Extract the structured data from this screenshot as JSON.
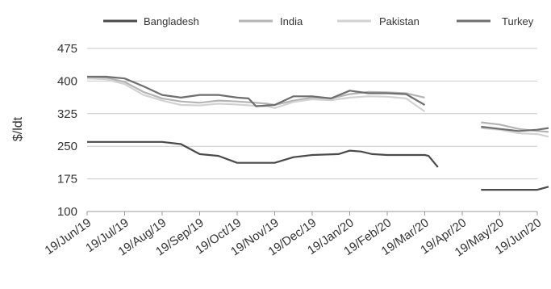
{
  "chart_data": {
    "type": "line",
    "title": "",
    "xlabel": "",
    "ylabel": "$/ldt",
    "ylim": [
      100,
      475
    ],
    "yticks": [
      100,
      175,
      250,
      325,
      400,
      475
    ],
    "grid": true,
    "legend_position": "top",
    "x_categories": [
      "19/Jun/19",
      "19/Jul/19",
      "19/Aug/19",
      "19/Sep/19",
      "19/Oct/19",
      "19/Nov/19",
      "19/Dec/19",
      "19/Jan/20",
      "19/Feb/20",
      "19/Mar/20",
      "19/Apr/20",
      "19/May/20",
      "19/Jun/20"
    ],
    "series": [
      {
        "name": "Bangladesh",
        "color": "#4a4a4a",
        "segments": [
          [
            [
              0,
              260
            ],
            [
              1,
              260
            ],
            [
              2,
              260
            ],
            [
              2.5,
              255
            ],
            [
              3,
              232
            ],
            [
              3.5,
              228
            ],
            [
              4,
              212
            ],
            [
              5,
              212
            ],
            [
              5.5,
              225
            ],
            [
              6,
              230
            ],
            [
              6.7,
              232
            ],
            [
              7,
              240
            ],
            [
              7.3,
              238
            ],
            [
              7.6,
              232
            ],
            [
              8,
              230
            ],
            [
              9,
              230
            ],
            [
              9.1,
              228
            ],
            [
              9.35,
              202
            ]
          ],
          [
            [
              10.5,
              150
            ],
            [
              11.5,
              150
            ],
            [
              12,
              150
            ],
            [
              12.3,
              157
            ]
          ]
        ]
      },
      {
        "name": "India",
        "color": "#b4b4b4",
        "segments": [
          [
            [
              0,
              408
            ],
            [
              0.5,
              408
            ],
            [
              1,
              398
            ],
            [
              1.5,
              375
            ],
            [
              2,
              360
            ],
            [
              2.5,
              353
            ],
            [
              3,
              350
            ],
            [
              3.5,
              355
            ],
            [
              4,
              353
            ],
            [
              4.5,
              350
            ],
            [
              4.8,
              348
            ],
            [
              5,
              345
            ],
            [
              5.5,
              355
            ],
            [
              6,
              362
            ],
            [
              6.5,
              360
            ],
            [
              7,
              370
            ],
            [
              7.5,
              375
            ],
            [
              8,
              374
            ],
            [
              8.5,
              372
            ],
            [
              9,
              362
            ]
          ],
          [
            [
              10.5,
              305
            ],
            [
              11,
              300
            ],
            [
              11.5,
              290
            ],
            [
              12,
              285
            ],
            [
              12.3,
              283
            ]
          ]
        ]
      },
      {
        "name": "Pakistan",
        "color": "#d2d2d2",
        "segments": [
          [
            [
              0,
              406
            ],
            [
              0.5,
              404
            ],
            [
              1,
              393
            ],
            [
              1.5,
              368
            ],
            [
              2,
              355
            ],
            [
              2.5,
              345
            ],
            [
              3,
              344
            ],
            [
              3.5,
              348
            ],
            [
              4,
              346
            ],
            [
              4.5,
              343
            ],
            [
              4.8,
              342
            ],
            [
              5,
              338
            ],
            [
              5.5,
              352
            ],
            [
              6,
              358
            ],
            [
              6.5,
              356
            ],
            [
              7,
              362
            ],
            [
              7.5,
              365
            ],
            [
              8,
              364
            ],
            [
              8.5,
              360
            ],
            [
              9,
              330
            ]
          ],
          [
            [
              10.5,
              292
            ],
            [
              11,
              288
            ],
            [
              11.5,
              280
            ],
            [
              12,
              278
            ],
            [
              12.3,
              272
            ]
          ]
        ]
      },
      {
        "name": "Turkey",
        "color": "#6e6e6e",
        "segments": [
          [
            [
              0,
              410
            ],
            [
              0.5,
              410
            ],
            [
              1,
              406
            ],
            [
              1.5,
              388
            ],
            [
              2,
              368
            ],
            [
              2.5,
              362
            ],
            [
              3,
              368
            ],
            [
              3.5,
              368
            ],
            [
              4,
              362
            ],
            [
              4.3,
              360
            ],
            [
              4.5,
              342
            ],
            [
              5,
              345
            ],
            [
              5.5,
              365
            ],
            [
              6,
              365
            ],
            [
              6.5,
              360
            ],
            [
              7,
              378
            ],
            [
              7.5,
              372
            ],
            [
              8,
              372
            ],
            [
              8.5,
              370
            ],
            [
              9,
              345
            ]
          ],
          [
            [
              10.5,
              295
            ],
            [
              11,
              290
            ],
            [
              11.5,
              285
            ],
            [
              12,
              288
            ],
            [
              12.3,
              292
            ]
          ]
        ]
      }
    ]
  }
}
